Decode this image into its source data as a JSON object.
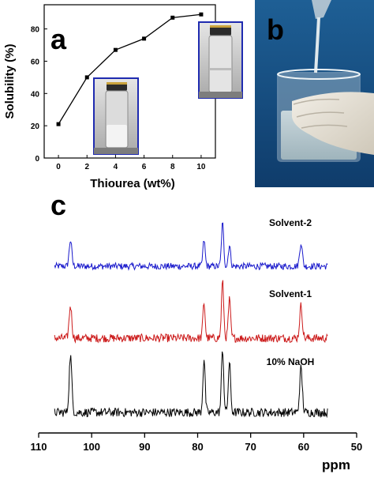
{
  "chart_data": [
    {
      "panel": "a",
      "type": "line",
      "xlabel": "Thiourea (wt%)",
      "ylabel": "Solubility (%)",
      "xlim": [
        -1,
        11
      ],
      "ylim": [
        0,
        95
      ],
      "x_ticks": [
        "0",
        "2",
        "4",
        "6",
        "8",
        "10"
      ],
      "y_ticks": [
        "0",
        "20",
        "40",
        "60",
        "80"
      ],
      "x": [
        0,
        2,
        4,
        6,
        8,
        10
      ],
      "values": [
        21,
        50,
        67,
        74,
        87,
        89
      ],
      "marker": "square",
      "series_color": "#000000",
      "insets": [
        "vial-photo-low-solubility",
        "vial-photo-high-solubility"
      ],
      "inset_border_color": "#1f2bb0"
    },
    {
      "panel": "c",
      "type": "line",
      "xlabel": "ppm",
      "xlim": [
        110,
        50
      ],
      "x_ticks": [
        "110",
        "100",
        "90",
        "80",
        "70",
        "60",
        "50"
      ],
      "grid": false,
      "series": [
        {
          "name": "Solvent-2",
          "color": "#1a1acc",
          "peaks_ppm": [
            104.0,
            78.8,
            75.3,
            74.0,
            60.5
          ],
          "peak_heights": [
            0.55,
            0.55,
            0.9,
            0.45,
            0.5
          ]
        },
        {
          "name": "Solvent-1",
          "color": "#cc1a1a",
          "peaks_ppm": [
            104.0,
            78.8,
            75.3,
            74.0,
            60.5
          ],
          "peak_heights": [
            0.55,
            0.6,
            0.95,
            0.65,
            0.55
          ]
        },
        {
          "name": "10% NaOH",
          "color": "#000000",
          "peaks_ppm": [
            104.0,
            78.8,
            75.3,
            74.0,
            60.5
          ],
          "peak_heights": [
            0.9,
            0.85,
            1.0,
            0.8,
            0.7
          ]
        }
      ]
    }
  ],
  "panel_labels": {
    "a": "a",
    "b": "b",
    "c": "c"
  },
  "photo_b": {
    "description": "solution-pouring-into-beaker-photo"
  }
}
